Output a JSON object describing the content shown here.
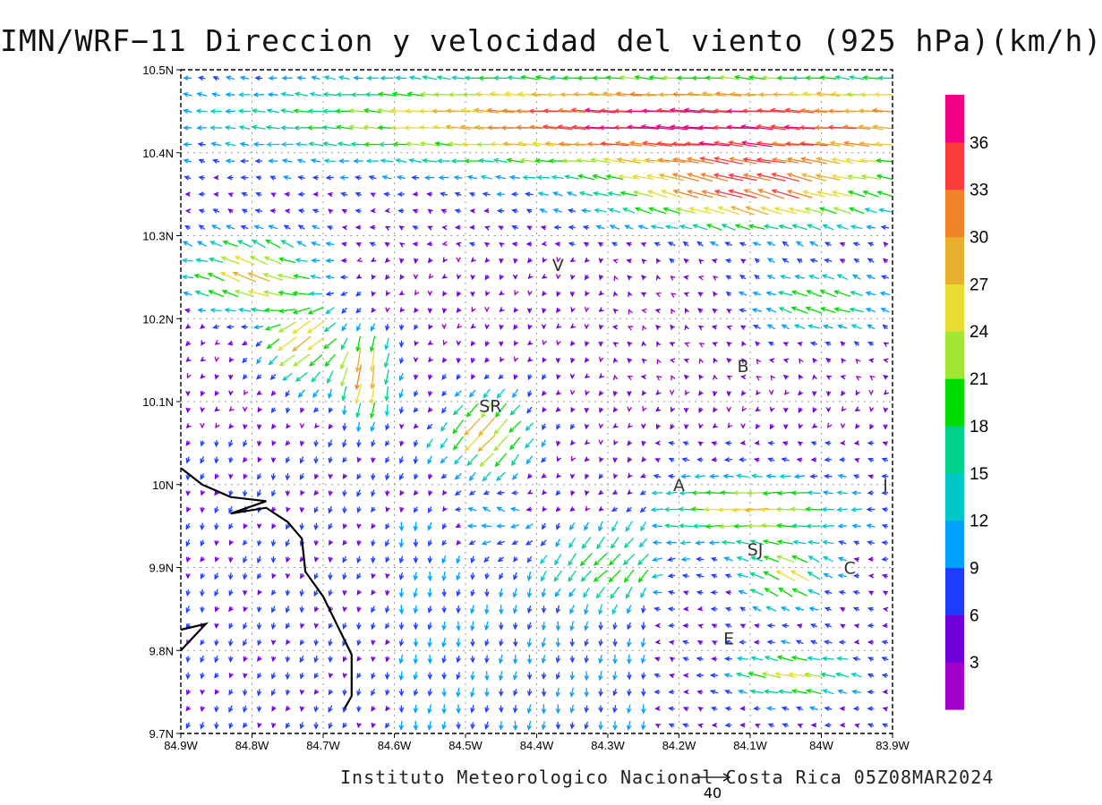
{
  "title": "IMN/WRF−11 Direccion y velocidad del viento (925 hPa)(km/h)",
  "footer": "Instituto Meteorologico Nacional Costa Rica 05Z08MAR2024",
  "reference_vector": {
    "value": 40,
    "label": "40"
  },
  "axes": {
    "lon_range": [
      -84.9,
      -83.9
    ],
    "lat_range": [
      9.7,
      10.5
    ],
    "lon_ticks": [
      {
        "value": -84.9,
        "label": "84.9W"
      },
      {
        "value": -84.8,
        "label": "84.8W"
      },
      {
        "value": -84.7,
        "label": "84.7W"
      },
      {
        "value": -84.6,
        "label": "84.6W"
      },
      {
        "value": -84.5,
        "label": "84.5W"
      },
      {
        "value": -84.4,
        "label": "84.4W"
      },
      {
        "value": -84.3,
        "label": "84.3W"
      },
      {
        "value": -84.2,
        "label": "84.2W"
      },
      {
        "value": -84.1,
        "label": "84.1W"
      },
      {
        "value": -84.0,
        "label": "84W"
      },
      {
        "value": -83.9,
        "label": "83.9W"
      }
    ],
    "lat_ticks": [
      {
        "value": 10.5,
        "label": "10.5N"
      },
      {
        "value": 10.4,
        "label": "10.4N"
      },
      {
        "value": 10.3,
        "label": "10.3N"
      },
      {
        "value": 10.2,
        "label": "10.2N"
      },
      {
        "value": 10.1,
        "label": "10.1N"
      },
      {
        "value": 10.0,
        "label": "10N"
      },
      {
        "value": 9.9,
        "label": "9.9N"
      },
      {
        "value": 9.8,
        "label": "9.8N"
      },
      {
        "value": 9.7,
        "label": "9.7N"
      }
    ],
    "grid": true
  },
  "cities": [
    {
      "label": "V",
      "lon": -84.37,
      "lat": 10.265
    },
    {
      "label": "B",
      "lon": -84.11,
      "lat": 10.143
    },
    {
      "label": "SR",
      "lon": -84.465,
      "lat": 10.095
    },
    {
      "label": "A",
      "lon": -84.2,
      "lat": 10.0
    },
    {
      "label": "I",
      "lon": -83.91,
      "lat": 10.0
    },
    {
      "label": "SJ",
      "lon": -84.093,
      "lat": 9.922
    },
    {
      "label": "C",
      "lon": -83.96,
      "lat": 9.9
    },
    {
      "label": "E",
      "lon": -84.13,
      "lat": 9.815
    }
  ],
  "coastline": [
    [
      -84.9,
      10.02
    ],
    [
      -84.87,
      10.0
    ],
    [
      -84.83,
      9.985
    ],
    [
      -84.78,
      9.98
    ],
    [
      -84.83,
      9.965
    ],
    [
      -84.78,
      9.972
    ],
    [
      -84.75,
      9.955
    ],
    [
      -84.73,
      9.935
    ],
    [
      -84.725,
      9.895
    ],
    [
      -84.7,
      9.865
    ],
    [
      -84.68,
      9.83
    ],
    [
      -84.66,
      9.795
    ],
    [
      -84.66,
      9.745
    ],
    [
      -84.67,
      9.73
    ]
  ],
  "coastline_west": [
    [
      -84.9,
      9.825
    ],
    [
      -84.865,
      9.832
    ],
    [
      -84.9,
      9.8
    ]
  ],
  "colorbar": {
    "levels": [
      3,
      6,
      9,
      12,
      15,
      18,
      21,
      24,
      27,
      30,
      33,
      36
    ],
    "labels": [
      "3",
      "6",
      "9",
      "12",
      "15",
      "18",
      "21",
      "24",
      "27",
      "30",
      "33",
      "36"
    ],
    "colors": [
      "#a000c8",
      "#6e00dc",
      "#1e3cff",
      "#00a0ff",
      "#00c8c8",
      "#00d28c",
      "#00dc00",
      "#a0e632",
      "#e6dc32",
      "#e6af2d",
      "#f08228",
      "#fa3c3c",
      "#f00082"
    ]
  },
  "wind_field": {
    "description": "",
    "grid": {
      "lon_start": -84.9,
      "lon_step": 0.02,
      "lat_start": 9.7,
      "lat_step": 0.02
    },
    "jets": [
      {
        "lon": -84.2,
        "lat": 10.44,
        "radius_lon": 0.55,
        "radius_lat": 0.06,
        "u": -33,
        "v": 1
      },
      {
        "lon": -84.1,
        "lat": 10.35,
        "radius_lon": 0.2,
        "radius_lat": 0.05,
        "u": -25,
        "v": 8
      },
      {
        "lon": -84.8,
        "lat": 10.25,
        "radius_lon": 0.1,
        "radius_lat": 0.05,
        "u": -24,
        "v": 14
      },
      {
        "lon": -84.64,
        "lat": 10.13,
        "radius_lon": 0.04,
        "radius_lat": 0.05,
        "u": -3,
        "v": -27
      },
      {
        "lon": -84.73,
        "lat": 10.17,
        "radius_lon": 0.05,
        "radius_lat": 0.05,
        "u": -20,
        "v": -14
      },
      {
        "lon": -84.47,
        "lat": 10.06,
        "radius_lon": 0.06,
        "radius_lat": 0.05,
        "u": -18,
        "v": -18
      },
      {
        "lon": -84.1,
        "lat": 9.97,
        "radius_lon": 0.13,
        "radius_lat": 0.04,
        "u": -21,
        "v": -2
      },
      {
        "lon": -84.05,
        "lat": 9.89,
        "radius_lon": 0.06,
        "radius_lat": 0.04,
        "u": -16,
        "v": 10
      },
      {
        "lon": -84.04,
        "lat": 9.77,
        "radius_lon": 0.08,
        "radius_lat": 0.03,
        "u": -20,
        "v": 4
      },
      {
        "lon": -84.0,
        "lat": 10.22,
        "radius_lon": 0.1,
        "radius_lat": 0.04,
        "u": -18,
        "v": 4
      },
      {
        "lon": -84.46,
        "lat": 9.95,
        "radius_lon": 0.06,
        "radius_lat": 0.04,
        "u": -10,
        "v": 10
      },
      {
        "lon": -84.3,
        "lat": 9.9,
        "radius_lon": 0.08,
        "radius_lat": 0.04,
        "u": -14,
        "v": -6
      }
    ]
  }
}
